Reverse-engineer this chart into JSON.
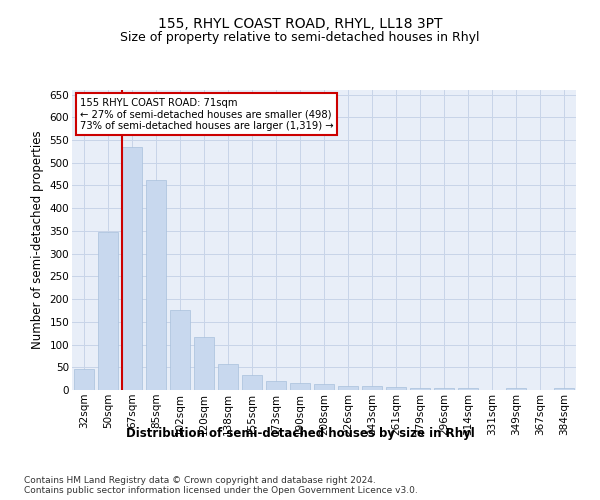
{
  "title": "155, RHYL COAST ROAD, RHYL, LL18 3PT",
  "subtitle": "Size of property relative to semi-detached houses in Rhyl",
  "xlabel": "Distribution of semi-detached houses by size in Rhyl",
  "ylabel": "Number of semi-detached properties",
  "categories": [
    "32sqm",
    "50sqm",
    "67sqm",
    "85sqm",
    "102sqm",
    "120sqm",
    "138sqm",
    "155sqm",
    "173sqm",
    "190sqm",
    "208sqm",
    "226sqm",
    "243sqm",
    "261sqm",
    "279sqm",
    "296sqm",
    "314sqm",
    "331sqm",
    "349sqm",
    "367sqm",
    "384sqm"
  ],
  "values": [
    46,
    348,
    535,
    463,
    175,
    117,
    58,
    34,
    19,
    15,
    14,
    9,
    9,
    6,
    5,
    5,
    4,
    1,
    4,
    1,
    4
  ],
  "bar_color": "#c8d8ee",
  "bar_edge_color": "#a8c0dc",
  "highlight_line_color": "#cc0000",
  "annotation_text": "155 RHYL COAST ROAD: 71sqm\n← 27% of semi-detached houses are smaller (498)\n73% of semi-detached houses are larger (1,319) →",
  "annotation_box_color": "#cc0000",
  "ylim": [
    0,
    660
  ],
  "yticks": [
    0,
    50,
    100,
    150,
    200,
    250,
    300,
    350,
    400,
    450,
    500,
    550,
    600,
    650
  ],
  "grid_color": "#c8d4e8",
  "bg_color": "#e8eef8",
  "footer": "Contains HM Land Registry data © Crown copyright and database right 2024.\nContains public sector information licensed under the Open Government Licence v3.0.",
  "title_fontsize": 10,
  "subtitle_fontsize": 9,
  "axis_label_fontsize": 8.5,
  "tick_fontsize": 7.5,
  "footer_fontsize": 6.5
}
